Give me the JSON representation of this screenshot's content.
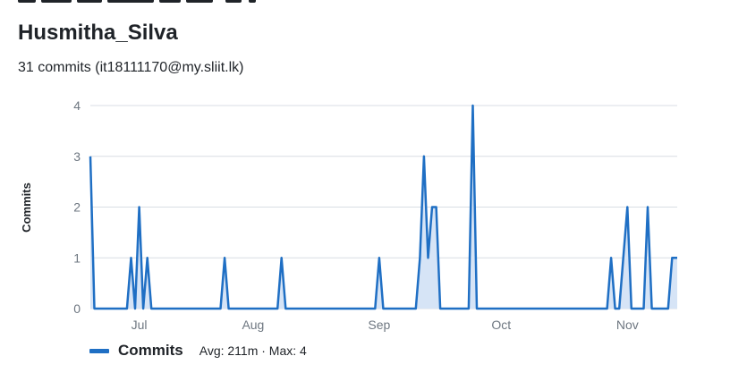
{
  "contributor": {
    "name": "Husmitha_Silva",
    "summary": "31 commits (it18111170@my.sliit.lk)"
  },
  "colors": {
    "line": "#1f6fc4",
    "fill": "#d6e4f6",
    "grid": "#d8dee4",
    "tick_text": "#6e7781"
  },
  "chart_data": {
    "type": "area",
    "ylabel": "Commits",
    "xlabel": "",
    "ylim": [
      0,
      4
    ],
    "y_ticks": [
      "0",
      "1",
      "2",
      "3",
      "4"
    ],
    "x_ticks": [
      {
        "label": "Jul",
        "date": "2021-07-04"
      },
      {
        "label": "Aug",
        "date": "2021-08-01"
      },
      {
        "label": "Sep",
        "date": "2021-09-01"
      },
      {
        "label": "Oct",
        "date": "2021-10-01"
      },
      {
        "label": "Nov",
        "date": "2021-11-01"
      }
    ],
    "grid": "horizontal",
    "legend_position": "bottom-left",
    "series": [
      {
        "name": "Commits",
        "points": [
          [
            "2021-06-22",
            3
          ],
          [
            "2021-06-23",
            0
          ],
          [
            "2021-07-01",
            0
          ],
          [
            "2021-07-02",
            1
          ],
          [
            "2021-07-03",
            0
          ],
          [
            "2021-07-04",
            2
          ],
          [
            "2021-07-05",
            0
          ],
          [
            "2021-07-06",
            1
          ],
          [
            "2021-07-07",
            0
          ],
          [
            "2021-07-24",
            0
          ],
          [
            "2021-07-25",
            1
          ],
          [
            "2021-07-26",
            0
          ],
          [
            "2021-08-07",
            0
          ],
          [
            "2021-08-08",
            1
          ],
          [
            "2021-08-09",
            0
          ],
          [
            "2021-08-31",
            0
          ],
          [
            "2021-09-01",
            1
          ],
          [
            "2021-09-02",
            0
          ],
          [
            "2021-09-10",
            0
          ],
          [
            "2021-09-11",
            1
          ],
          [
            "2021-09-12",
            3
          ],
          [
            "2021-09-13",
            1
          ],
          [
            "2021-09-14",
            2
          ],
          [
            "2021-09-15",
            2
          ],
          [
            "2021-09-16",
            0
          ],
          [
            "2021-09-23",
            0
          ],
          [
            "2021-09-24",
            4
          ],
          [
            "2021-09-25",
            0
          ],
          [
            "2021-10-27",
            0
          ],
          [
            "2021-10-28",
            1
          ],
          [
            "2021-10-29",
            0
          ],
          [
            "2021-10-30",
            0
          ],
          [
            "2021-10-31",
            1
          ],
          [
            "2021-11-01",
            2
          ],
          [
            "2021-11-02",
            0
          ],
          [
            "2021-11-05",
            0
          ],
          [
            "2021-11-06",
            2
          ],
          [
            "2021-11-07",
            0
          ],
          [
            "2021-11-11",
            0
          ],
          [
            "2021-11-12",
            1
          ],
          [
            "2021-11-13",
            1
          ]
        ]
      }
    ],
    "legend_stats": "Avg: 211m · Max: 4"
  }
}
